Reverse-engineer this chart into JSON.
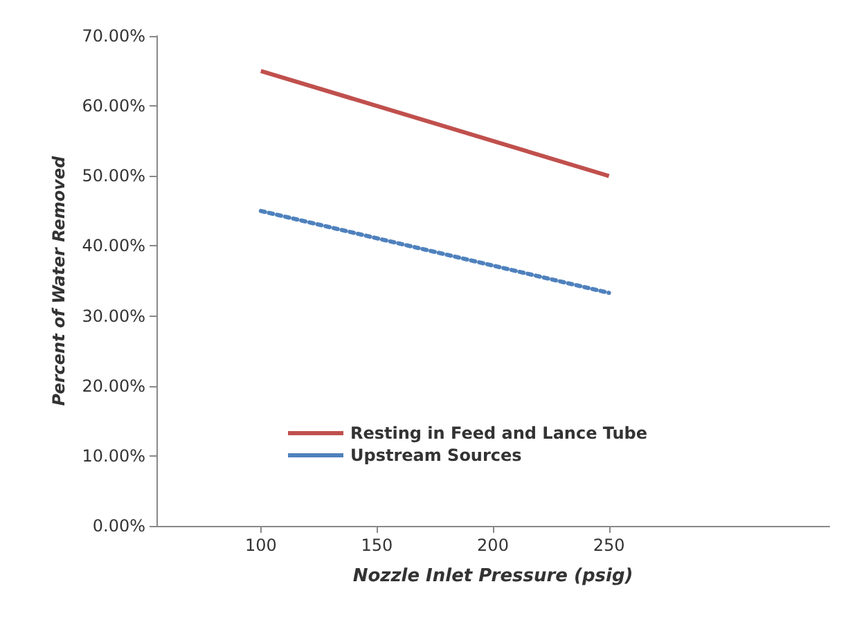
{
  "chart_data": {
    "type": "line",
    "xlabel": "Nozzle Inlet Pressure (psig)",
    "ylabel": "Percent of Water Removed",
    "x": [
      100,
      250
    ],
    "series": [
      {
        "name": "Resting in Feed and Lance Tube",
        "color": "#c0504d",
        "values": [
          65,
          50
        ],
        "line_style": "solid"
      },
      {
        "name": "Upstream Sources",
        "color": "#4f81bd",
        "values": [
          45,
          33.3
        ],
        "line_style": "dotted"
      }
    ],
    "xlim": [
      55,
      345
    ],
    "xticks": [
      100,
      150,
      200,
      250
    ],
    "ylim": [
      0,
      70
    ],
    "yticks": [
      {
        "value": 0,
        "label": "0.00%"
      },
      {
        "value": 10,
        "label": "10.00%"
      },
      {
        "value": 20,
        "label": "20.00%"
      },
      {
        "value": 30,
        "label": "30.00%"
      },
      {
        "value": 40,
        "label": "40.00%"
      },
      {
        "value": 50,
        "label": "50.00%"
      },
      {
        "value": 60,
        "label": "60.00%"
      },
      {
        "value": 70,
        "label": "70.00%"
      }
    ],
    "grid": false,
    "legend": "bottom left",
    "marker": "none"
  }
}
